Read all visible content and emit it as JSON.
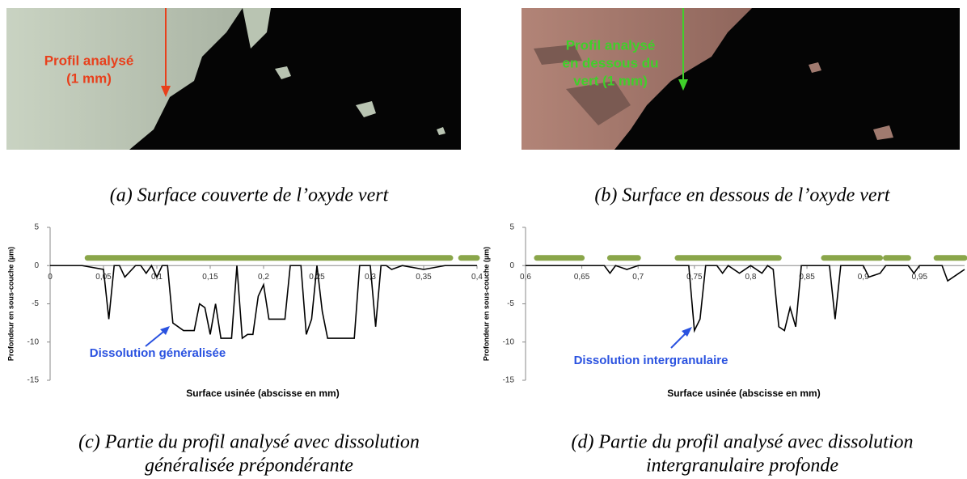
{
  "images": [
    {
      "annotation": [
        "Profil analysé",
        "(1 mm)"
      ]
    },
    {
      "annotation": [
        "Profil analysé",
        "en dessous du",
        "vert (1 mm)"
      ]
    }
  ],
  "captions": [
    [
      "(a) Surface couverte de l’oxyde vert"
    ],
    [
      "(b) Surface en dessous de l’oxyde vert"
    ],
    [
      "(c) Partie du profil analysé avec dissolution",
      "généralisée prépondérante"
    ],
    [
      "(d) Partie du profil analysé avec dissolution",
      "intergranulaire profonde"
    ]
  ],
  "chart_data": [
    {
      "type": "line",
      "y_label": "Profondeur en sous-couche (µm)",
      "x_label": "Surface usinée (abscisse en mm)",
      "annotation": "Dissolution généralisée",
      "x": [
        0,
        0.03,
        0.05,
        0.055,
        0.06,
        0.065,
        0.07,
        0.08,
        0.085,
        0.09,
        0.095,
        0.1,
        0.105,
        0.11,
        0.115,
        0.125,
        0.135,
        0.14,
        0.145,
        0.15,
        0.155,
        0.16,
        0.17,
        0.175,
        0.18,
        0.185,
        0.19,
        0.195,
        0.2,
        0.205,
        0.22,
        0.225,
        0.235,
        0.24,
        0.245,
        0.25,
        0.255,
        0.26,
        0.285,
        0.29,
        0.3,
        0.305,
        0.31,
        0.315,
        0.32,
        0.33,
        0.35,
        0.37,
        0.4
      ],
      "series": [
        {
          "color": "#000000",
          "values": [
            0,
            0,
            -0.5,
            -7,
            0,
            0,
            -1.5,
            0,
            0,
            -1,
            0,
            -1.5,
            0,
            0,
            -7.5,
            -8.5,
            -8.5,
            -5,
            -5.5,
            -9,
            -5,
            -9.5,
            -9.5,
            0,
            -9.5,
            -9,
            -9,
            -4,
            -2.5,
            -7,
            -7,
            0,
            0,
            -9,
            -7,
            0,
            -6,
            -9.5,
            -9.5,
            0,
            0,
            -8,
            0,
            0,
            -0.5,
            0,
            -0.5,
            0,
            0
          ]
        }
      ],
      "bands": [
        [
          0.035,
          0.375
        ],
        [
          0.385,
          0.4
        ]
      ],
      "band_y": 1,
      "band_color": "#8aa64a",
      "xlim": [
        0,
        0.4
      ],
      "ylim": [
        -15,
        5
      ],
      "xticks": [
        0,
        {
          "value": 0.05,
          "label": "0,05"
        },
        {
          "value": 0.1,
          "label": "0,1"
        },
        {
          "value": 0.15,
          "label": "0,15"
        },
        {
          "value": 0.2,
          "label": "0,2"
        },
        {
          "value": 0.25,
          "label": "0,25"
        },
        {
          "value": 0.3,
          "label": "0,3"
        },
        {
          "value": 0.35,
          "label": "0,35"
        },
        {
          "value": 0.4,
          "label": "0,4"
        }
      ],
      "yticks": [
        -15,
        -10,
        -5,
        0,
        5
      ]
    },
    {
      "type": "line",
      "y_label": "Profondeur en sous-couche (µm)",
      "x_label": "Surface usinée (abscisse en mm)",
      "annotation": "Dissolution intergranulaire",
      "x": [
        0.6,
        0.67,
        0.675,
        0.68,
        0.69,
        0.7,
        0.745,
        0.75,
        0.755,
        0.76,
        0.77,
        0.775,
        0.78,
        0.79,
        0.8,
        0.81,
        0.815,
        0.82,
        0.825,
        0.83,
        0.835,
        0.84,
        0.845,
        0.87,
        0.875,
        0.88,
        0.9,
        0.905,
        0.915,
        0.92,
        0.94,
        0.945,
        0.95,
        0.97,
        0.975,
        0.985,
        0.99
      ],
      "series": [
        {
          "color": "#000000",
          "values": [
            0,
            0,
            -1,
            0,
            -0.5,
            0,
            0,
            -8.5,
            -7,
            0,
            0,
            -1,
            0,
            -1,
            0,
            -1,
            0,
            -0.5,
            -8,
            -8.5,
            -5.5,
            -8,
            0,
            0,
            -7,
            0,
            0,
            -1.5,
            -1,
            0,
            0,
            -1,
            0,
            0,
            -2,
            -1,
            -0.5
          ]
        }
      ],
      "bands": [
        [
          0.61,
          0.65
        ],
        [
          0.675,
          0.7
        ],
        [
          0.735,
          0.825
        ],
        [
          0.865,
          0.915
        ],
        [
          0.92,
          0.94
        ],
        [
          0.965,
          0.99
        ]
      ],
      "band_y": 1,
      "band_color": "#8aa64a",
      "xlim": [
        0.6,
        0.99
      ],
      "ylim": [
        -15,
        5
      ],
      "xticks": [
        {
          "value": 0.6,
          "label": "0,6"
        },
        {
          "value": 0.65,
          "label": "0,65"
        },
        {
          "value": 0.7,
          "label": "0,7"
        },
        {
          "value": 0.75,
          "label": "0,75"
        },
        {
          "value": 0.8,
          "label": "0,8"
        },
        {
          "value": 0.85,
          "label": "0,85"
        },
        {
          "value": 0.9,
          "label": "0,9"
        },
        {
          "value": 0.95,
          "label": "0,95"
        }
      ],
      "yticks": [
        -15,
        -10,
        -5,
        0,
        5
      ]
    }
  ]
}
